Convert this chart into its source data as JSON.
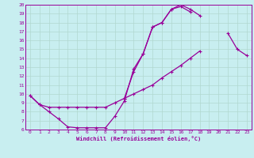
{
  "bg_color": "#c8eef0",
  "grid_color": "#b0d8d0",
  "line_color": "#990099",
  "marker": "+",
  "marker_size": 3,
  "marker_lw": 0.8,
  "line_width": 0.9,
  "xlabel": "Windchill (Refroidissement éolien,°C)",
  "xlim": [
    -0.5,
    23.5
  ],
  "ylim": [
    6,
    20
  ],
  "yticks": [
    6,
    7,
    8,
    9,
    10,
    11,
    12,
    13,
    14,
    15,
    16,
    17,
    18,
    19,
    20
  ],
  "xticks": [
    0,
    1,
    2,
    3,
    4,
    5,
    6,
    7,
    8,
    9,
    10,
    11,
    12,
    13,
    14,
    15,
    16,
    17,
    18,
    19,
    20,
    21,
    22,
    23
  ],
  "series": [
    {
      "x": [
        0,
        1,
        2,
        3,
        4,
        5,
        6,
        7,
        8,
        9,
        10,
        11,
        12,
        13,
        14,
        15,
        16,
        17,
        18,
        19,
        20,
        21,
        22,
        23
      ],
      "y": [
        9.8,
        8.8,
        8.5,
        8.5,
        8.5,
        8.5,
        8.5,
        8.5,
        8.5,
        9.0,
        9.5,
        12.5,
        14.5,
        17.5,
        18.0,
        19.5,
        20.0,
        19.5,
        18.8,
        null,
        null,
        null,
        null,
        null
      ]
    },
    {
      "x": [
        0,
        1,
        2,
        3,
        4,
        5,
        6,
        7,
        8,
        9,
        10,
        11,
        12,
        13,
        14,
        15,
        16,
        17,
        18,
        19
      ],
      "y": [
        9.8,
        8.8,
        8.0,
        7.2,
        6.3,
        6.2,
        6.2,
        6.2,
        6.2,
        7.5,
        9.2,
        12.8,
        14.5,
        17.5,
        18.0,
        19.5,
        19.8,
        19.2,
        null,
        null
      ]
    },
    {
      "x": [
        10,
        11,
        12,
        13,
        14,
        15,
        16,
        17,
        18,
        19,
        20,
        21,
        22,
        23
      ],
      "y": [
        9.5,
        10.0,
        10.5,
        11.0,
        11.8,
        12.5,
        13.2,
        14.0,
        14.8,
        null,
        null,
        16.8,
        15.0,
        14.3
      ]
    }
  ]
}
